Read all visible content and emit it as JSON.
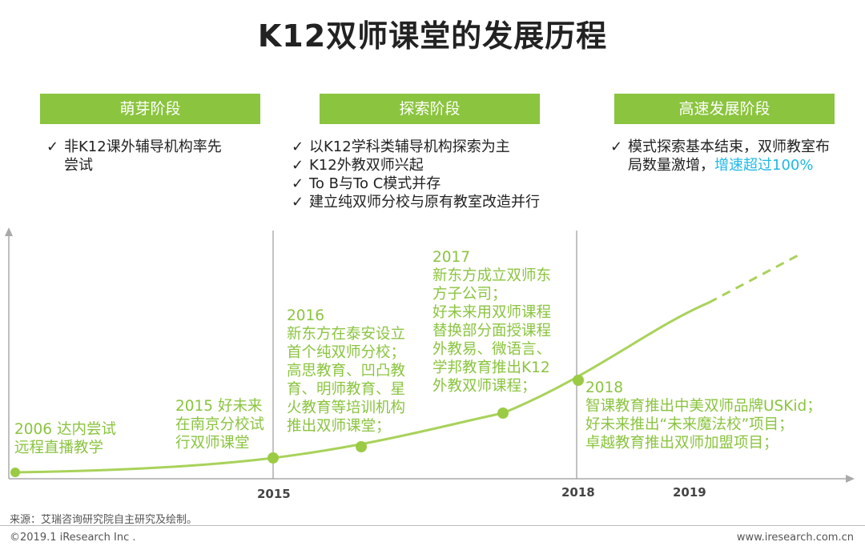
{
  "title": "K12双师课堂的发展历程",
  "stages": [
    {
      "label": "萌芽阶段",
      "bullets": [
        {
          "check": "✓",
          "lines": [
            "非K12课外辅导机构率先",
            "尝试"
          ]
        }
      ]
    },
    {
      "label": "探索阶段",
      "bullets": [
        {
          "check": "✓",
          "lines": [
            "以K12学科类辅导机构探索为主"
          ]
        },
        {
          "check": "✓",
          "lines": [
            "K12外教双师兴起"
          ]
        },
        {
          "check": "✓",
          "lines": [
            "To B与To C模式并存"
          ]
        },
        {
          "check": "✓",
          "lines": [
            "建立纯双师分校与原有教室改造并行"
          ]
        }
      ]
    },
    {
      "label": "高速发展阶段",
      "bullets": [
        {
          "check": "✓",
          "line1": "模式探索基本结束，双师教室布",
          "line2a": "局数量激增，",
          "line2b": "增速超过100%"
        }
      ]
    }
  ],
  "events": [
    {
      "lines": [
        "2006 达内尝试",
        "远程直播教学"
      ]
    },
    {
      "lines": [
        "2015 好未来",
        "在南京分校试",
        "行双师课堂"
      ]
    },
    {
      "lines": [
        "2016",
        "新东方在泰安设立",
        "首个纯双师分校；",
        "高思教育、凹凸教",
        "育、明师教育、星",
        "火教育等培训机构",
        "推出双师课堂；"
      ]
    },
    {
      "lines": [
        "2017",
        "新东方成立双师东",
        "方子公司；",
        "好未来用双师课程",
        "替换部分面授课程",
        "外教易、微语言、",
        "学邦教育推出K12",
        "外教双师课程；"
      ]
    },
    {
      "lines": [
        "2018",
        "智课教育推出中美双师品牌USKid；",
        "好未来推出“未来魔法校”项目；",
        "卓越教育推出双师加盟项目；"
      ]
    }
  ],
  "axis_labels": [
    "2015",
    "2018",
    "2019"
  ],
  "footer": {
    "source": "来源：艾瑞咨询研究院自主研究及绘制。",
    "copyright": "©2019.1 iResearch Inc .",
    "website": "www.iresearch.com.cn"
  },
  "colors": {
    "accent": "#8bc43f",
    "highlight": "#1fb8e8"
  }
}
